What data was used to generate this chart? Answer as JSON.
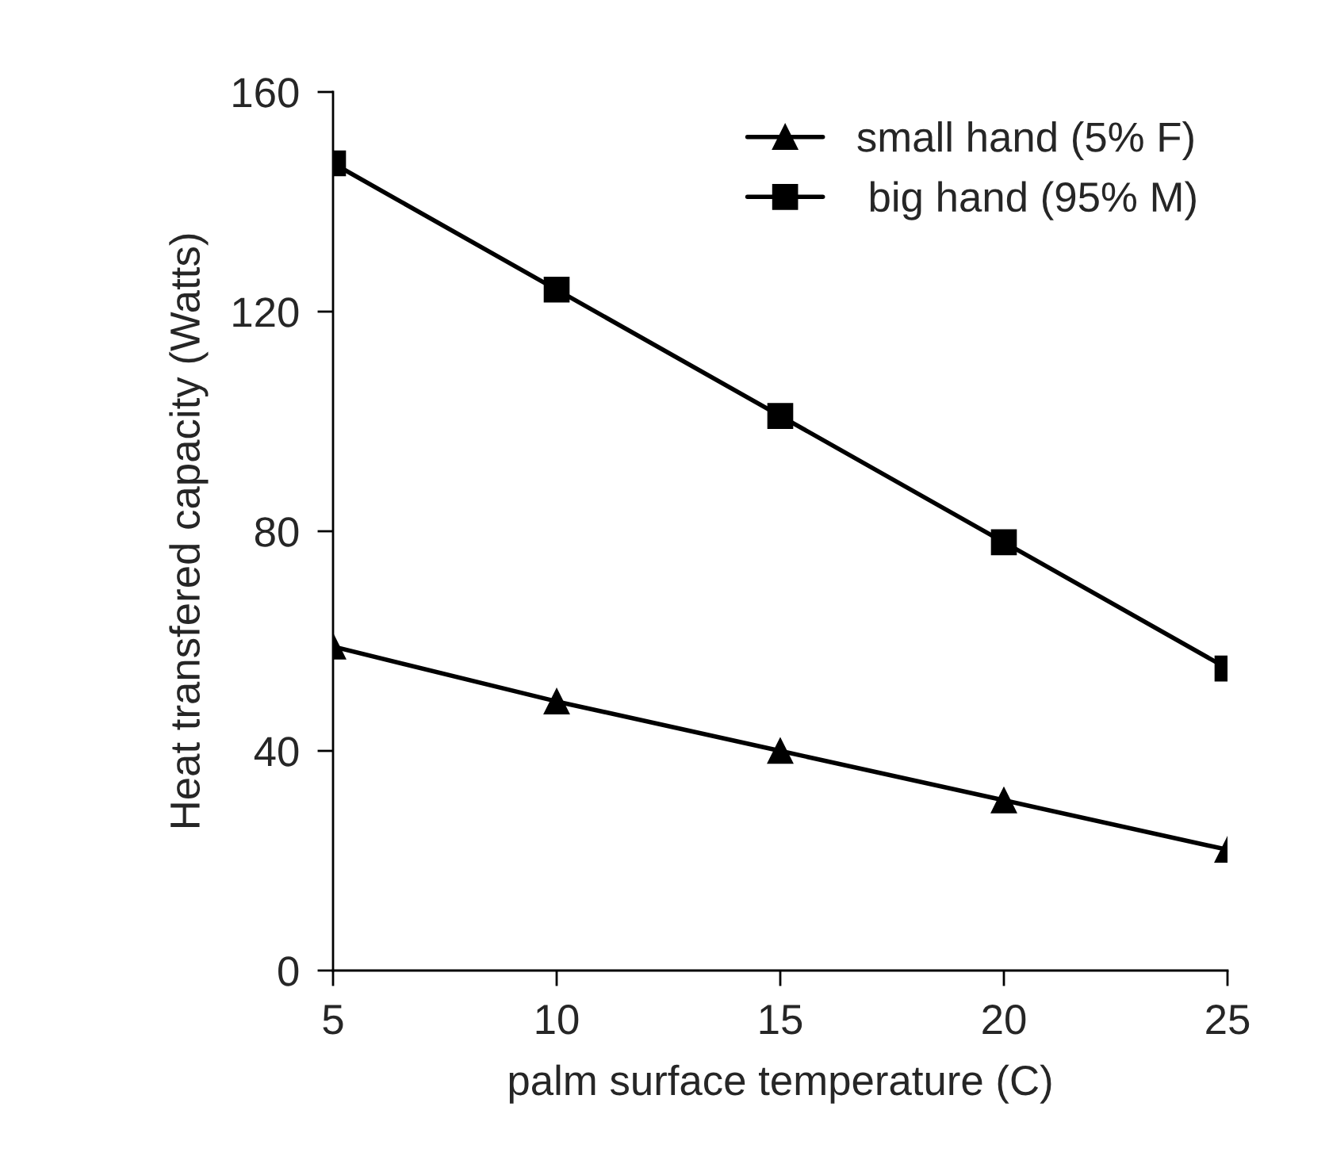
{
  "chart_data": {
    "type": "line",
    "xlabel": "palm surface temperature (C)",
    "ylabel": "Heat transfered capacity (Watts)",
    "x": [
      5,
      10,
      15,
      20,
      25
    ],
    "series": [
      {
        "name": "small hand (5% F)",
        "color": "#000000",
        "values": [
          59,
          49,
          40,
          31,
          22
        ],
        "marker": "triangle"
      },
      {
        "name": " big hand (95% M)",
        "color": "#000000",
        "values": [
          147,
          124,
          101,
          78,
          55
        ],
        "marker": "square"
      }
    ],
    "xlim": [
      5,
      25
    ],
    "xticks": [
      5,
      10,
      15,
      20,
      25
    ],
    "ylim": [
      0,
      160
    ],
    "yticks": [
      0,
      40,
      80,
      120,
      160
    ],
    "grid": false,
    "legend": "top right",
    "line_style": "solid"
  }
}
